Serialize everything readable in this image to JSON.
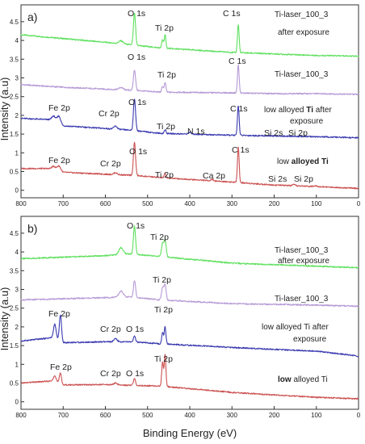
{
  "chart_data": [
    {
      "panel": "a)",
      "type": "line",
      "xlabel": "",
      "ylabel": "Intensity (a.u)",
      "xlim": [
        800,
        0
      ],
      "ylim": [
        -0.2,
        4.95
      ],
      "x_ticks": [
        "800",
        "700",
        "600",
        "500",
        "400",
        "300",
        "200",
        "100",
        "0"
      ],
      "y_ticks": [
        "0",
        "0.5",
        "1",
        "1.5",
        "2",
        "2.5",
        "3",
        "3.5",
        "4",
        "4.5"
      ],
      "grid": false,
      "series": [
        {
          "name": "Ti-laser_100_3 after exposure",
          "label_lines": [
            "Ti-laser_100_3",
            "after exposure"
          ],
          "color": "#5ee05e",
          "baseline": [
            [
              800,
              4.15
            ],
            [
              700,
              4.05
            ],
            [
              600,
              3.95
            ],
            [
              535,
              3.88
            ],
            [
              470,
              3.8
            ],
            [
              300,
              3.68
            ],
            [
              200,
              3.64
            ],
            [
              100,
              3.6
            ],
            [
              0,
              3.58
            ]
          ],
          "peaks": [
            {
              "x": 531,
              "h": 0.85,
              "w": 2.5
            },
            {
              "x": 563,
              "h": 0.08,
              "w": 5
            },
            {
              "x": 458.5,
              "h": 0.35,
              "w": 2
            },
            {
              "x": 464.5,
              "h": 0.22,
              "w": 2
            },
            {
              "x": 285,
              "h": 0.75,
              "w": 2
            }
          ],
          "peak_labels": [
            {
              "text": "O 1s",
              "x": 531
            },
            {
              "text": "Ti 2p",
              "x": 458
            },
            {
              "text": "C 1s",
              "x": 285
            }
          ]
        },
        {
          "name": "Ti-laser_100_3",
          "label_lines": [
            "Ti-laser_100_3"
          ],
          "color": "#b69ad6",
          "baseline": [
            [
              800,
              2.82
            ],
            [
              700,
              2.75
            ],
            [
              600,
              2.7
            ],
            [
              535,
              2.67
            ],
            [
              470,
              2.62
            ],
            [
              300,
              2.6
            ],
            [
              200,
              2.58
            ],
            [
              100,
              2.58
            ],
            [
              0,
              2.56
            ]
          ],
          "peaks": [
            {
              "x": 531,
              "h": 0.55,
              "w": 2.5
            },
            {
              "x": 563,
              "h": 0.06,
              "w": 5
            },
            {
              "x": 458.5,
              "h": 0.25,
              "w": 2
            },
            {
              "x": 464.5,
              "h": 0.15,
              "w": 2
            },
            {
              "x": 285,
              "h": 0.75,
              "w": 2
            }
          ],
          "peak_labels": [
            {
              "text": "O 1s",
              "x": 531
            },
            {
              "text": "Ti 2p",
              "x": 458
            },
            {
              "text": "C 1s",
              "x": 285
            }
          ]
        },
        {
          "name": "low alloyed Ti after exposure",
          "label_lines": [
            "low alloyed Ti after",
            "exposure"
          ],
          "bold_word": "Ti",
          "color": "#3b3bb0",
          "baseline": [
            [
              800,
              1.92
            ],
            [
              720,
              1.88
            ],
            [
              700,
              1.72
            ],
            [
              600,
              1.65
            ],
            [
              535,
              1.6
            ],
            [
              470,
              1.52
            ],
            [
              300,
              1.47
            ],
            [
              200,
              1.45
            ],
            [
              100,
              1.43
            ],
            [
              0,
              1.4
            ]
          ],
          "peaks": [
            {
              "x": 710,
              "h": 0.18,
              "w": 4
            },
            {
              "x": 723,
              "h": 0.1,
              "w": 4
            },
            {
              "x": 576,
              "h": 0.08,
              "w": 4
            },
            {
              "x": 531,
              "h": 0.85,
              "w": 2.5
            },
            {
              "x": 458.5,
              "h": 0.1,
              "w": 2
            },
            {
              "x": 400,
              "h": 0.05,
              "w": 3
            },
            {
              "x": 285,
              "h": 0.8,
              "w": 2
            }
          ],
          "peak_labels": [
            {
              "text": "Fe 2p",
              "x": 720
            },
            {
              "text": "Cr 2p",
              "x": 578
            },
            {
              "text": "O 1s",
              "x": 531
            },
            {
              "text": "Ti 2p",
              "x": 458
            },
            {
              "text": "N 1s",
              "x": 400
            },
            {
              "text": "C 1s",
              "x": 285
            },
            {
              "text": "Si 2s",
              "x": 150
            },
            {
              "text": "Si 2p",
              "x": 100
            }
          ]
        },
        {
          "name": "low alloyed Ti",
          "label_lines": [
            "low alloyed Ti"
          ],
          "bold_word": "alloyed Ti",
          "color": "#cc5252",
          "baseline": [
            [
              800,
              0.58
            ],
            [
              720,
              0.58
            ],
            [
              700,
              0.48
            ],
            [
              600,
              0.43
            ],
            [
              535,
              0.4
            ],
            [
              470,
              0.34
            ],
            [
              300,
              0.22
            ],
            [
              200,
              0.14
            ],
            [
              100,
              0.1
            ],
            [
              0,
              0.05
            ]
          ],
          "peaks": [
            {
              "x": 710,
              "h": 0.12,
              "w": 4
            },
            {
              "x": 723,
              "h": 0.06,
              "w": 4
            },
            {
              "x": 576,
              "h": 0.05,
              "w": 4
            },
            {
              "x": 531,
              "h": 0.88,
              "w": 2.5
            },
            {
              "x": 458.5,
              "h": 0.12,
              "w": 2
            },
            {
              "x": 347,
              "h": 0.04,
              "w": 3
            },
            {
              "x": 285,
              "h": 0.95,
              "w": 2
            },
            {
              "x": 153,
              "h": 0.03,
              "w": 3
            },
            {
              "x": 102,
              "h": 0.03,
              "w": 3
            }
          ],
          "peak_labels": [
            {
              "text": "Fe 2p",
              "x": 720
            },
            {
              "text": "Cr 2p",
              "x": 578
            },
            {
              "text": "O 1s",
              "x": 531
            },
            {
              "text": "Ti 2p",
              "x": 458
            },
            {
              "text": "Ca 2p",
              "x": 347
            },
            {
              "text": "C 1s",
              "x": 285
            },
            {
              "text": "Si 2s",
              "x": 150
            },
            {
              "text": "Si 2p",
              "x": 100
            }
          ]
        }
      ]
    },
    {
      "panel": "b)",
      "type": "line",
      "xlabel": "Binding Energy (eV)",
      "ylabel": "Intensity (a.u)",
      "xlim": [
        800,
        0
      ],
      "ylim": [
        -0.2,
        4.95
      ],
      "x_ticks": [
        "800",
        "700",
        "600",
        "500",
        "400",
        "300",
        "200",
        "100",
        "0"
      ],
      "y_ticks": [
        "0",
        "0.5",
        "1",
        "1.5",
        "2",
        "2.5",
        "3",
        "3.5",
        "4",
        "4.5"
      ],
      "grid": false,
      "series": [
        {
          "name": "Ti-laser_100_3 after exposure",
          "label_lines": [
            "Ti-laser_100_3",
            "after exposure"
          ],
          "color": "#5ee05e",
          "baseline": [
            [
              800,
              3.82
            ],
            [
              600,
              3.9
            ],
            [
              545,
              3.95
            ],
            [
              470,
              3.88
            ],
            [
              300,
              3.7
            ],
            [
              100,
              3.62
            ],
            [
              0,
              3.58
            ]
          ],
          "peaks": [
            {
              "x": 531,
              "h": 0.75,
              "w": 2.5
            },
            {
              "x": 563,
              "h": 0.18,
              "w": 5
            },
            {
              "x": 458.5,
              "h": 0.45,
              "w": 2.5
            },
            {
              "x": 464.5,
              "h": 0.35,
              "w": 2.5
            }
          ],
          "peak_labels": [
            {
              "text": "O 1s",
              "x": 531
            },
            {
              "text": "Ti 2p",
              "x": 458
            }
          ]
        },
        {
          "name": "Ti-laser_100_3",
          "label_lines": [
            "Ti-laser_100_3"
          ],
          "color": "#b69ad6",
          "baseline": [
            [
              800,
              2.72
            ],
            [
              600,
              2.78
            ],
            [
              545,
              2.8
            ],
            [
              470,
              2.72
            ],
            [
              300,
              2.62
            ],
            [
              100,
              2.58
            ],
            [
              0,
              2.55
            ]
          ],
          "peaks": [
            {
              "x": 531,
              "h": 0.45,
              "w": 2.5
            },
            {
              "x": 563,
              "h": 0.16,
              "w": 5
            },
            {
              "x": 458.5,
              "h": 0.42,
              "w": 2.5
            },
            {
              "x": 464.5,
              "h": 0.32,
              "w": 2.5
            }
          ],
          "peak_labels": [
            {
              "text": "Ti 2p",
              "x": 458
            }
          ]
        },
        {
          "name": "low alloyed Ti after exposure",
          "label_lines": [
            "low alloyed Ti after",
            "exposure"
          ],
          "color": "#3b3bb0",
          "baseline": [
            [
              800,
              1.62
            ],
            [
              720,
              1.72
            ],
            [
              700,
              1.58
            ],
            [
              600,
              1.6
            ],
            [
              540,
              1.6
            ],
            [
              470,
              1.55
            ],
            [
              300,
              1.45
            ],
            [
              200,
              1.4
            ],
            [
              100,
              1.35
            ],
            [
              0,
              1.22
            ]
          ],
          "peaks": [
            {
              "x": 706.5,
              "h": 0.7,
              "w": 2.5
            },
            {
              "x": 720,
              "h": 0.35,
              "w": 3
            },
            {
              "x": 576,
              "h": 0.08,
              "w": 4
            },
            {
              "x": 531,
              "h": 0.15,
              "w": 2.5
            },
            {
              "x": 458.5,
              "h": 0.45,
              "w": 2
            },
            {
              "x": 464.5,
              "h": 0.3,
              "w": 2
            }
          ],
          "peak_labels": [
            {
              "text": "Fe 2p",
              "x": 712
            },
            {
              "text": "Cr 2p",
              "x": 578
            },
            {
              "text": "O 1s",
              "x": 531
            },
            {
              "text": "Ti 2p",
              "x": 458
            }
          ]
        },
        {
          "name": "low alloyed Ti",
          "label_lines": [
            "low alloyed Ti"
          ],
          "bold_word": "low",
          "color": "#cc5252",
          "baseline": [
            [
              800,
              0.5
            ],
            [
              720,
              0.56
            ],
            [
              700,
              0.45
            ],
            [
              600,
              0.46
            ],
            [
              540,
              0.44
            ],
            [
              470,
              0.42
            ],
            [
              300,
              0.25
            ],
            [
              200,
              0.18
            ],
            [
              100,
              0.12
            ],
            [
              0,
              0.08
            ]
          ],
          "peaks": [
            {
              "x": 706.5,
              "h": 0.28,
              "w": 2.5
            },
            {
              "x": 720,
              "h": 0.15,
              "w": 3
            },
            {
              "x": 576,
              "h": 0.05,
              "w": 4
            },
            {
              "x": 531,
              "h": 0.18,
              "w": 2.5
            },
            {
              "x": 458.5,
              "h": 0.85,
              "w": 2
            },
            {
              "x": 464.5,
              "h": 0.65,
              "w": 2
            }
          ],
          "peak_labels": [
            {
              "text": "Fe 2p",
              "x": 712
            },
            {
              "text": "Cr 2p",
              "x": 578
            },
            {
              "text": "O 1s",
              "x": 531
            },
            {
              "text": "Ti 2p",
              "x": 458
            }
          ]
        }
      ]
    }
  ]
}
